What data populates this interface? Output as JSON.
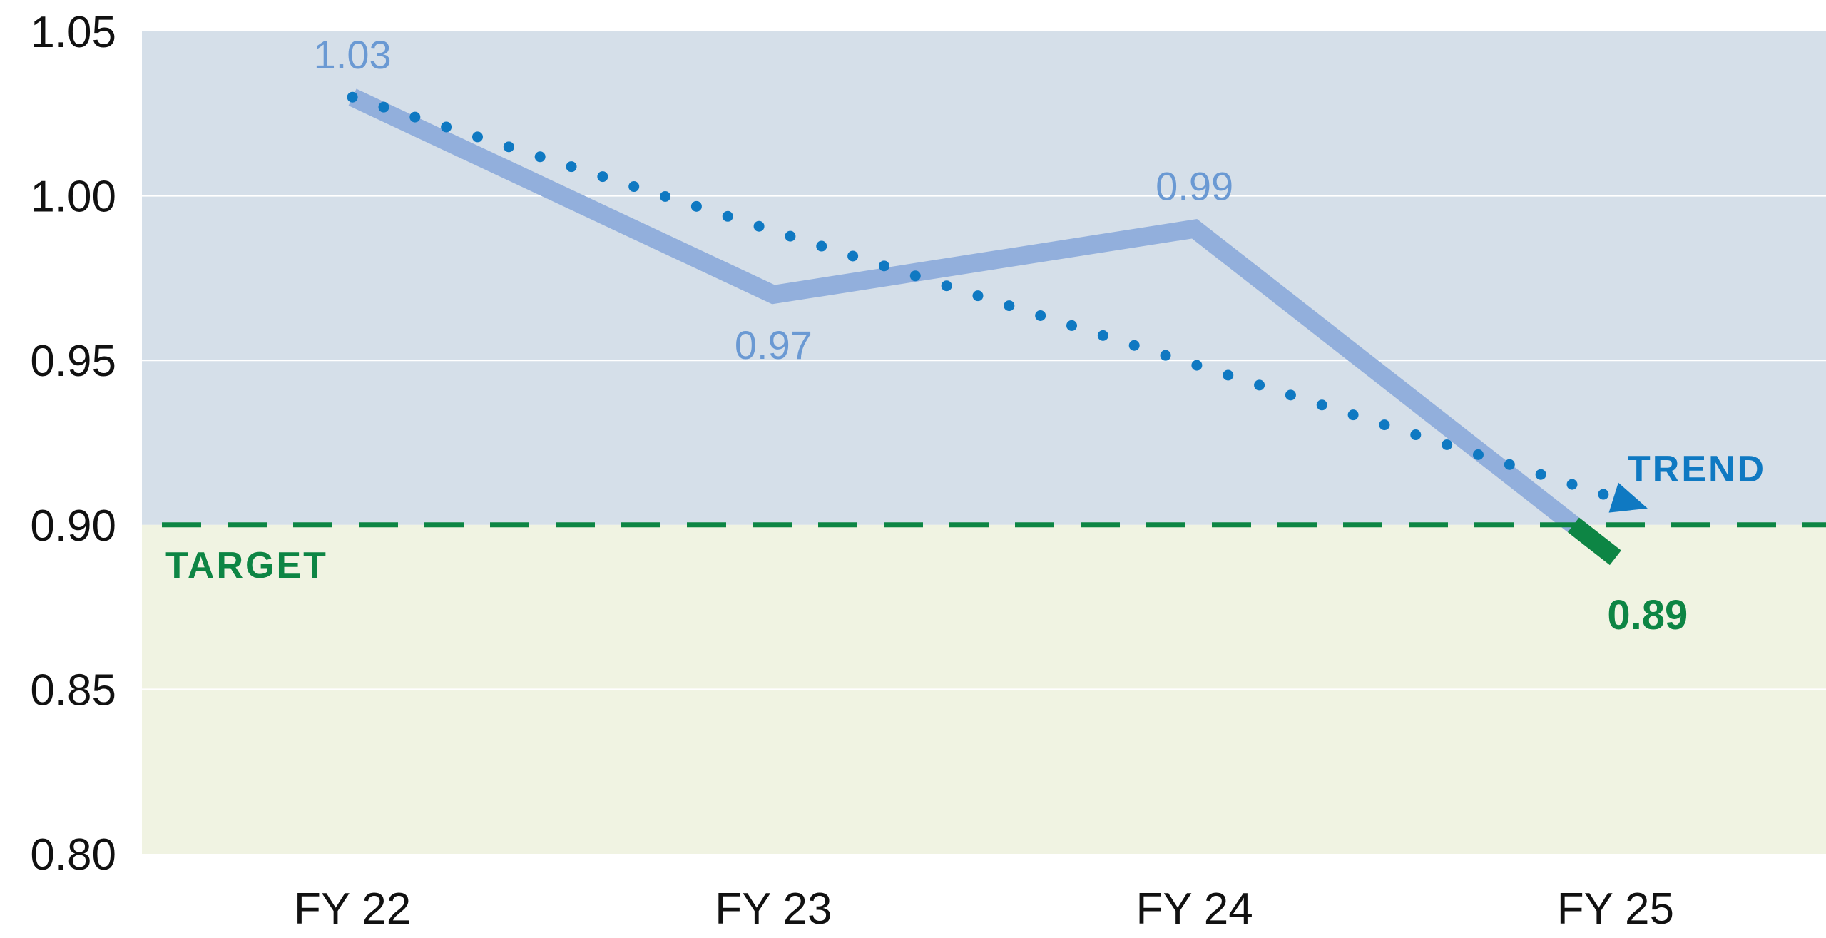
{
  "chart_data": {
    "type": "line",
    "title": "",
    "xlabel": "",
    "ylabel": "",
    "categories": [
      "FY 22",
      "FY 23",
      "FY 24",
      "FY 25"
    ],
    "series": [
      {
        "values": [
          1.03,
          0.97,
          0.99,
          0.89
        ],
        "data_labels": [
          "1.03",
          "0.97",
          "0.99",
          "0.89"
        ]
      }
    ],
    "ylim": [
      0.8,
      1.05
    ],
    "yticks": [
      "0.80",
      "0.85",
      "0.90",
      "0.95",
      "1.00",
      "1.05"
    ],
    "grid": true,
    "target": {
      "label": "TARGET",
      "value": 0.9
    },
    "trend": {
      "label": "TREND",
      "start": 1.03,
      "end": 0.905
    },
    "colors": {
      "above_target_bg": "#d5dfe9",
      "below_target_bg": "#f0f3e2",
      "line": "#92afdc",
      "line_below_target": "#0d8544",
      "data_label": "#6a99d3",
      "trend": "#0f79c2",
      "target": "#0d8544"
    }
  }
}
